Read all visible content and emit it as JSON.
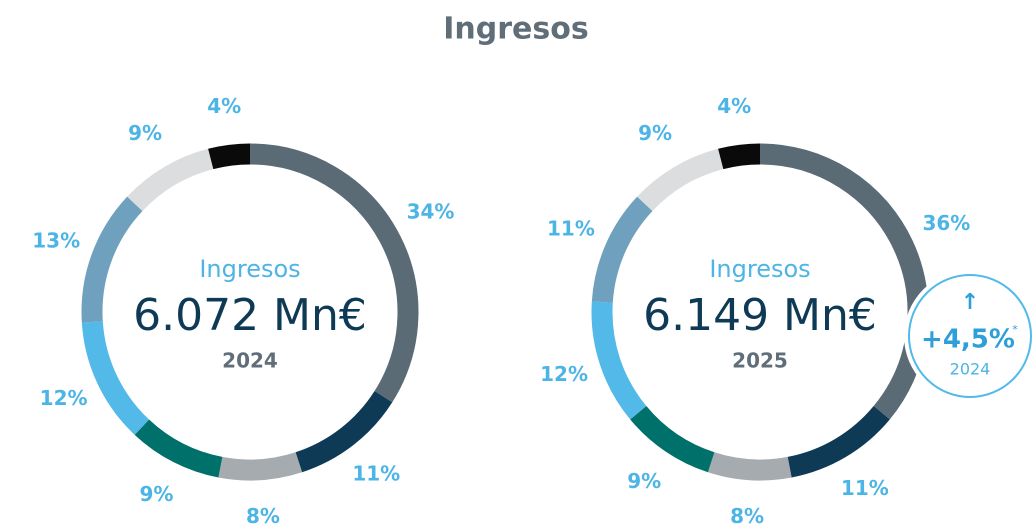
{
  "title": "Ingresos",
  "chart_data": [
    {
      "type": "pie",
      "donut": true,
      "center_label": "Ingresos",
      "center_value": "6.072 Mn€",
      "year": "2024",
      "values": [
        34,
        11,
        8,
        9,
        12,
        13,
        9,
        4
      ],
      "value_labels": [
        "34%",
        "11%",
        "8%",
        "9%",
        "12%",
        "13%",
        "9%",
        "4%"
      ],
      "colors": [
        "#5a6b76",
        "#0e3a56",
        "#a6abaf",
        "#00706b",
        "#52b9e9",
        "#6fa1be",
        "#dcdddf",
        "#0a0a0a"
      ]
    },
    {
      "type": "pie",
      "donut": true,
      "center_label": "Ingresos",
      "center_value": "6.149 Mn€",
      "year": "2025",
      "values": [
        36,
        11,
        8,
        9,
        12,
        11,
        9,
        4
      ],
      "value_labels": [
        "36%",
        "11%",
        "8%",
        "9%",
        "12%",
        "11%",
        "9%",
        "4%"
      ],
      "colors": [
        "#5a6b76",
        "#0e3a56",
        "#a6abaf",
        "#00706b",
        "#52b9e9",
        "#6fa1be",
        "#dcdddf",
        "#0a0a0a"
      ],
      "badge": {
        "arrow": "↑",
        "text": "+4,5%",
        "note": "*",
        "year": "2024"
      }
    }
  ]
}
